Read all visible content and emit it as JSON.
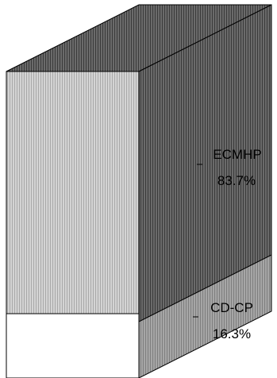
{
  "chart_data": {
    "type": "bar",
    "variant": "stacked-100-3d",
    "title": "",
    "xlabel": "",
    "ylabel": "",
    "categories": [
      ""
    ],
    "series": [
      {
        "name": "CD-CP",
        "value": 16.3,
        "label_name": "CD-CP",
        "label_value": "16.3%"
      },
      {
        "name": "ECMHP",
        "value": 83.7,
        "label_name": "ECMHP",
        "label_value": "83.7%"
      }
    ],
    "ylim": [
      0,
      100
    ],
    "grid": false,
    "legend": "none"
  },
  "colors": {
    "front_ecmhp": "#c6c6c6",
    "side_ecmhp": "#5a5a5a",
    "top": "#4a4a4a",
    "front_cdcp": "#ffffff",
    "side_cdcp": "#9a9a9a",
    "outline": "#000000"
  }
}
